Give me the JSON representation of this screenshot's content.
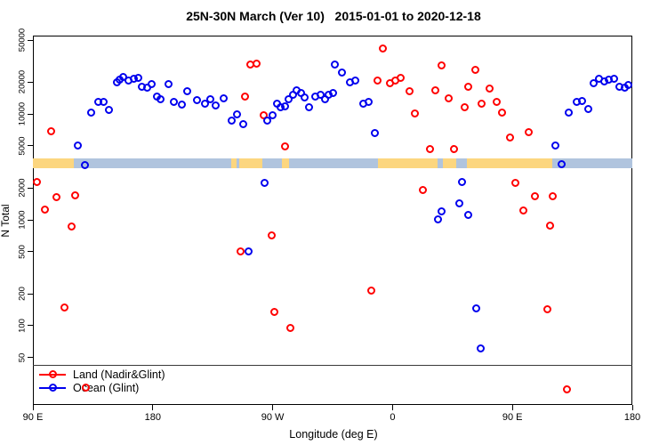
{
  "title": "25N-30N March (Ver 10)   2015-01-01 to 2020-12-18",
  "legend": {
    "items": [
      {
        "label": "Land (Nadir&Glint)",
        "color": "#ff0000"
      },
      {
        "label": "Ocean (Glint)",
        "color": "#0000ee"
      }
    ]
  },
  "colors": {
    "land_series": "#ff0000",
    "ocean_series": "#0000ee",
    "band_land": "#fcd67f",
    "band_ocean": "#b0c4de",
    "axis": "#000000"
  },
  "chart_data": {
    "type": "scatter",
    "title": "25N-30N March (Ver 10)   2015-01-01 to 2020-12-18",
    "xlabel": "Longitude (deg E)",
    "ylabel": "N Total",
    "y_scale": "log10",
    "ylim": [
      18,
      55000
    ],
    "x_axis_ticks": {
      "labels": [
        "90 E",
        "180",
        "90 W",
        "0",
        "90 E",
        "180"
      ],
      "lons_continuous_deg_east": [
        90,
        180,
        270,
        360,
        450,
        540
      ]
    },
    "y_axis_ticks": [
      50000,
      20000,
      10000,
      5000,
      2000,
      1000,
      500,
      200,
      100,
      50
    ],
    "grid": false,
    "legend_position": "bottom-left",
    "series": [
      {
        "name": "Land (Nadir&Glint)",
        "color": "#ff0000",
        "marker": "open-circle",
        "points": [
          [
            104,
            6900
          ],
          [
            93,
            2290
          ],
          [
            108,
            1630
          ],
          [
            122,
            1690
          ],
          [
            99,
            1240
          ],
          [
            119,
            860
          ],
          [
            114,
            148
          ],
          [
            130,
            26
          ],
          [
            253,
            29500
          ],
          [
            258,
            30000
          ],
          [
            249,
            14500
          ],
          [
            263,
            9800
          ],
          [
            279,
            4900
          ],
          [
            269,
            710
          ],
          [
            246,
            500
          ],
          [
            271,
            136
          ],
          [
            283,
            95
          ],
          [
            344,
            215
          ],
          [
            349,
            20700
          ],
          [
            353,
            42000
          ],
          [
            358,
            19400
          ],
          [
            362,
            20800
          ],
          [
            366,
            21900
          ],
          [
            373,
            16300
          ],
          [
            377,
            10200
          ],
          [
            383,
            1900
          ],
          [
            388,
            4700
          ],
          [
            392,
            16700
          ],
          [
            397,
            28900
          ],
          [
            402,
            14000
          ],
          [
            406,
            4700
          ],
          [
            414,
            11500
          ],
          [
            417,
            18200
          ],
          [
            422,
            26200
          ],
          [
            427,
            12600
          ],
          [
            433,
            17500
          ],
          [
            438,
            12900
          ],
          [
            442,
            10400
          ],
          [
            448,
            6000
          ],
          [
            452,
            2250
          ],
          [
            458,
            1220
          ],
          [
            462,
            6800
          ],
          [
            467,
            1660
          ],
          [
            476,
            142
          ],
          [
            478,
            885
          ],
          [
            480,
            1680
          ],
          [
            491,
            25
          ]
        ]
      },
      {
        "name": "Ocean (Glint)",
        "color": "#0000ee",
        "marker": "open-circle",
        "points": [
          [
            124,
            5000
          ],
          [
            129,
            3300
          ],
          [
            134,
            10400
          ],
          [
            139,
            13100
          ],
          [
            143,
            13000
          ],
          [
            147,
            11000
          ],
          [
            153,
            19900
          ],
          [
            155,
            21200
          ],
          [
            158,
            22200
          ],
          [
            162,
            20800
          ],
          [
            166,
            21400
          ],
          [
            169,
            22000
          ],
          [
            172,
            18200
          ],
          [
            176,
            17700
          ],
          [
            179,
            19300
          ],
          [
            183,
            14500
          ],
          [
            186,
            13800
          ],
          [
            192,
            19000
          ],
          [
            196,
            12900
          ],
          [
            202,
            12200
          ],
          [
            206,
            16300
          ],
          [
            213,
            13500
          ],
          [
            219,
            12600
          ],
          [
            223,
            13800
          ],
          [
            227,
            12000
          ],
          [
            233,
            14100
          ],
          [
            239,
            8750
          ],
          [
            243,
            9950
          ],
          [
            248,
            8050
          ],
          [
            252,
            500
          ],
          [
            264,
            2250
          ],
          [
            266,
            8750
          ],
          [
            270,
            9700
          ],
          [
            273,
            12600
          ],
          [
            276,
            11500
          ],
          [
            279,
            11900
          ],
          [
            282,
            13800
          ],
          [
            285,
            15300
          ],
          [
            288,
            16900
          ],
          [
            291,
            15900
          ],
          [
            294,
            14400
          ],
          [
            297,
            11500
          ],
          [
            302,
            14700
          ],
          [
            306,
            15300
          ],
          [
            309,
            13800
          ],
          [
            312,
            15100
          ],
          [
            315,
            15900
          ],
          [
            317,
            29500
          ],
          [
            322,
            24500
          ],
          [
            328,
            19900
          ],
          [
            332,
            20700
          ],
          [
            338,
            12600
          ],
          [
            342,
            12900
          ],
          [
            347,
            6550
          ],
          [
            394,
            1010
          ],
          [
            397,
            1200
          ],
          [
            410,
            1440
          ],
          [
            412,
            2290
          ],
          [
            417,
            1110
          ],
          [
            423,
            147
          ],
          [
            426,
            61
          ],
          [
            482,
            5050
          ],
          [
            487,
            3350
          ],
          [
            492,
            10400
          ],
          [
            498,
            13100
          ],
          [
            502,
            13300
          ],
          [
            507,
            11100
          ],
          [
            511,
            19400
          ],
          [
            515,
            21700
          ],
          [
            519,
            20200
          ],
          [
            522,
            21200
          ],
          [
            526,
            21500
          ],
          [
            530,
            18000
          ],
          [
            534,
            17900
          ],
          [
            537,
            18800
          ]
        ]
      }
    ],
    "land_ocean_band": {
      "description": "horizontal land/ocean mask strip drawn across the plot",
      "value": 3450,
      "land_color": "#fcd67f",
      "ocean_color": "#b0c4de",
      "segments": [
        {
          "type": "land",
          "from": 90,
          "to": 121
        },
        {
          "type": "ocean",
          "from": 121,
          "to": 239
        },
        {
          "type": "land",
          "from": 239,
          "to": 243
        },
        {
          "type": "ocean",
          "from": 243,
          "to": 245
        },
        {
          "type": "land",
          "from": 245,
          "to": 262
        },
        {
          "type": "ocean",
          "from": 262,
          "to": 277
        },
        {
          "type": "land",
          "from": 277,
          "to": 282
        },
        {
          "type": "ocean",
          "from": 282,
          "to": 349
        },
        {
          "type": "land",
          "from": 349,
          "to": 394
        },
        {
          "type": "ocean",
          "from": 394,
          "to": 398
        },
        {
          "type": "land",
          "from": 398,
          "to": 408
        },
        {
          "type": "ocean",
          "from": 408,
          "to": 416
        },
        {
          "type": "land",
          "from": 416,
          "to": 480
        },
        {
          "type": "ocean",
          "from": 480,
          "to": 540
        }
      ]
    }
  }
}
